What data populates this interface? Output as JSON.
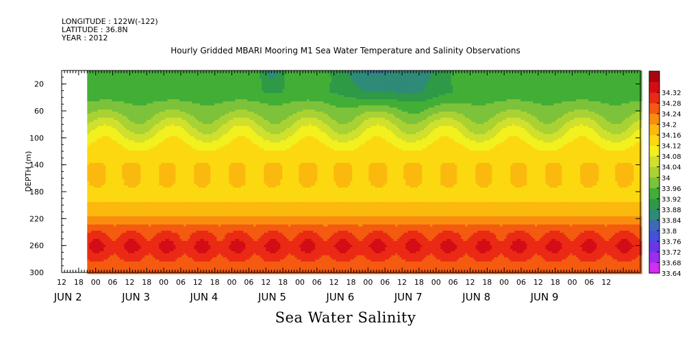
{
  "header": {
    "longitude": "LONGITUDE : 122W(-122)",
    "latitude": "LATITUDE : 36.8N",
    "year": "YEAR : 2012"
  },
  "chart_data": {
    "type": "heatmap",
    "title": "Hourly Gridded MBARI Mooring M1 Sea Water Temperature and Salinity Observations",
    "bottom_title": "Sea Water Salinity",
    "ylabel": "DEPTH (m)",
    "xlabel": "",
    "y_axis_reversed": true,
    "ylim": [
      300,
      0
    ],
    "y_ticks": [
      20,
      60,
      100,
      140,
      180,
      220,
      260,
      300
    ],
    "x_range_hours": [
      -12,
      192
    ],
    "data_start_hour": -3,
    "x_hour_labels": [
      "12",
      "18",
      "00",
      "06",
      "12",
      "18",
      "00",
      "06",
      "12",
      "18",
      "00",
      "06",
      "12",
      "18",
      "00",
      "06",
      "12",
      "18",
      "00",
      "06",
      "12",
      "18",
      "00",
      "06",
      "12",
      "18",
      "00",
      "06",
      "12",
      "18",
      "00",
      "06",
      "12"
    ],
    "day_labels": [
      {
        "label": "JUN  2",
        "hour": 0
      },
      {
        "label": "JUN  3",
        "hour": 24
      },
      {
        "label": "JUN  4",
        "hour": 48
      },
      {
        "label": "JUN  5",
        "hour": 72
      },
      {
        "label": "JUN  6",
        "hour": 96
      },
      {
        "label": "JUN  7",
        "hour": 120
      },
      {
        "label": "JUN  8",
        "hour": 144
      },
      {
        "label": "JUN  9",
        "hour": 168
      }
    ],
    "colorbar": {
      "levels": [
        "33.64",
        "33.68",
        "33.72",
        "33.76",
        "33.8",
        "33.84",
        "33.88",
        "33.92",
        "33.96",
        "34",
        "34.04",
        "34.08",
        "34.12",
        "34.16",
        "34.2",
        "34.24",
        "34.28",
        "34.32"
      ],
      "colors": [
        "#d42cf0",
        "#9a2ef0",
        "#6a37e6",
        "#4650dc",
        "#3b6bb8",
        "#2f8a78",
        "#2e9946",
        "#42ae36",
        "#7cc23a",
        "#a9d234",
        "#cfe02e",
        "#f2f01e",
        "#fcd810",
        "#fbb90e",
        "#f98e0e",
        "#f45a10",
        "#ea2a14",
        "#d40c16",
        "#a8060e"
      ]
    },
    "depth_profile": [
      {
        "depth": 10,
        "value": 33.9
      },
      {
        "depth": 30,
        "value": 33.89
      },
      {
        "depth": 60,
        "value": 33.95
      },
      {
        "depth": 90,
        "value": 34.03
      },
      {
        "depth": 110,
        "value": 34.08
      },
      {
        "depth": 140,
        "value": 34.12
      },
      {
        "depth": 160,
        "value": 34.12
      },
      {
        "depth": 190,
        "value": 34.11
      },
      {
        "depth": 215,
        "value": 34.16
      },
      {
        "depth": 240,
        "value": 34.24
      },
      {
        "depth": 260,
        "value": 34.28
      },
      {
        "depth": 280,
        "value": 34.24
      },
      {
        "depth": 300,
        "value": 34.2
      }
    ]
  }
}
